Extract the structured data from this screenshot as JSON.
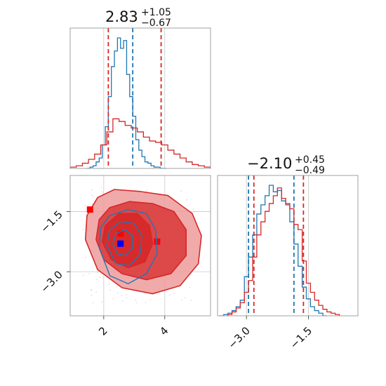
{
  "colors": {
    "blue": "#1f77b4",
    "red": "#d62728",
    "red_fill_light": "#ee9b9b",
    "red_fill_dark": "#d62728",
    "grid": "#c8c8c8",
    "frame": "#8a8a8a"
  },
  "chart_data": [
    {
      "type": "histogram",
      "panel": "top-left",
      "parameter_index": 0,
      "title": {
        "value": "2.83",
        "plus": "+1.05",
        "minus": "−0.67"
      },
      "xlim": [
        0.9,
        5.5
      ],
      "grid": true,
      "series": [
        {
          "color": "blue",
          "quantile_lines": [
            2.95
          ],
          "bins_x": [
            1.5,
            1.6,
            1.7,
            1.8,
            1.9,
            2.0,
            2.1,
            2.2,
            2.3,
            2.4,
            2.5,
            2.6,
            2.7,
            2.8,
            2.9,
            3.0,
            3.1,
            3.2,
            3.3,
            3.4,
            3.5,
            3.6,
            3.7,
            3.8,
            3.9,
            4.0
          ],
          "counts": [
            0.0,
            0.01,
            0.02,
            0.05,
            0.08,
            0.18,
            0.32,
            0.55,
            0.78,
            0.9,
            1.0,
            0.92,
            0.98,
            0.72,
            0.55,
            0.4,
            0.22,
            0.14,
            0.09,
            0.05,
            0.04,
            0.02,
            0.01,
            0.01,
            0.0,
            0.0
          ]
        },
        {
          "color": "red",
          "quantile_lines": [
            2.15,
            3.88
          ],
          "bins_x": [
            1.0,
            1.2,
            1.4,
            1.6,
            1.8,
            2.0,
            2.2,
            2.4,
            2.6,
            2.8,
            3.0,
            3.2,
            3.4,
            3.6,
            3.8,
            4.0,
            4.2,
            4.4,
            4.6,
            4.8,
            5.0,
            5.2,
            5.4
          ],
          "counts": [
            0.01,
            0.02,
            0.04,
            0.07,
            0.11,
            0.18,
            0.28,
            0.38,
            0.36,
            0.33,
            0.31,
            0.28,
            0.24,
            0.21,
            0.2,
            0.18,
            0.14,
            0.11,
            0.08,
            0.05,
            0.03,
            0.02,
            0.01
          ]
        }
      ]
    },
    {
      "type": "contour",
      "panel": "bottom-left",
      "xlim": [
        0.9,
        5.5
      ],
      "ylim": [
        -4.1,
        -0.6
      ],
      "grid": true,
      "xticks": [
        2,
        4
      ],
      "xtick_labels": [
        "2",
        "4"
      ],
      "yticks": [
        -1.5,
        -3.0
      ],
      "ytick_labels": [
        "−1.5",
        "−3.0"
      ],
      "series": [
        {
          "color": "red",
          "filled": true,
          "levels": [
            [
              [
                1.4,
                -2.2
              ],
              [
                1.45,
                -1.6
              ],
              [
                1.8,
                -1.15
              ],
              [
                2.35,
                -0.95
              ],
              [
                3.2,
                -1.0
              ],
              [
                4.1,
                -1.1
              ],
              [
                4.9,
                -1.55
              ],
              [
                5.2,
                -2.1
              ],
              [
                5.1,
                -2.8
              ],
              [
                4.5,
                -3.35
              ],
              [
                3.6,
                -3.55
              ],
              [
                2.6,
                -3.4
              ],
              [
                1.8,
                -2.95
              ]
            ],
            [
              [
                1.75,
                -2.2
              ],
              [
                1.85,
                -1.7
              ],
              [
                2.2,
                -1.4
              ],
              [
                2.85,
                -1.25
              ],
              [
                3.6,
                -1.3
              ],
              [
                4.3,
                -1.5
              ],
              [
                4.7,
                -1.95
              ],
              [
                4.7,
                -2.6
              ],
              [
                4.2,
                -3.05
              ],
              [
                3.4,
                -3.2
              ],
              [
                2.6,
                -3.05
              ],
              [
                2.0,
                -2.7
              ]
            ],
            [
              [
                1.95,
                -2.25
              ],
              [
                2.05,
                -1.85
              ],
              [
                2.5,
                -1.55
              ],
              [
                3.1,
                -1.55
              ],
              [
                3.5,
                -1.85
              ],
              [
                3.6,
                -2.3
              ],
              [
                3.35,
                -2.75
              ],
              [
                2.8,
                -2.9
              ],
              [
                2.25,
                -2.7
              ]
            ]
          ],
          "points": [
            [
              1.55,
              -1.45
            ],
            [
              2.55,
              -2.05
            ],
            [
              3.75,
              -2.25
            ]
          ]
        },
        {
          "color": "blue",
          "filled": false,
          "levels": [
            [
              [
                1.85,
                -2.4
              ],
              [
                1.9,
                -1.9
              ],
              [
                2.2,
                -1.6
              ],
              [
                2.8,
                -1.45
              ],
              [
                3.4,
                -1.55
              ],
              [
                3.7,
                -1.95
              ],
              [
                3.75,
                -2.55
              ],
              [
                3.4,
                -3.05
              ],
              [
                2.8,
                -3.3
              ],
              [
                2.2,
                -3.1
              ]
            ],
            [
              [
                2.1,
                -2.35
              ],
              [
                2.2,
                -1.95
              ],
              [
                2.55,
                -1.75
              ],
              [
                3.0,
                -1.8
              ],
              [
                3.25,
                -2.1
              ],
              [
                3.2,
                -2.55
              ],
              [
                2.85,
                -2.85
              ],
              [
                2.4,
                -2.8
              ]
            ],
            [
              [
                2.3,
                -2.3
              ],
              [
                2.4,
                -2.05
              ],
              [
                2.7,
                -1.95
              ],
              [
                2.95,
                -2.1
              ],
              [
                2.95,
                -2.4
              ],
              [
                2.7,
                -2.6
              ],
              [
                2.45,
                -2.55
              ]
            ]
          ],
          "points": [
            [
              2.55,
              -2.3
            ]
          ]
        }
      ]
    },
    {
      "type": "histogram",
      "panel": "bottom-right",
      "parameter_index": 1,
      "title": {
        "value": "−2.10",
        "plus": "+0.45",
        "minus": "−0.49"
      },
      "xlim": [
        -3.7,
        -0.3
      ],
      "grid": true,
      "xticks": [
        -3.0,
        -1.5
      ],
      "xtick_labels": [
        "−3.0",
        "−1.5"
      ],
      "series": [
        {
          "color": "blue",
          "quantile_lines": [
            -2.95,
            -1.85
          ],
          "bins_x": [
            -3.6,
            -3.5,
            -3.4,
            -3.3,
            -3.2,
            -3.1,
            -3.0,
            -2.9,
            -2.8,
            -2.7,
            -2.6,
            -2.5,
            -2.4,
            -2.3,
            -2.2,
            -2.1,
            -2.0,
            -1.9,
            -1.8,
            -1.7,
            -1.6,
            -1.5,
            -1.4,
            -1.3,
            -1.2,
            -1.1
          ],
          "counts": [
            0.0,
            0.01,
            0.02,
            0.04,
            0.07,
            0.12,
            0.3,
            0.45,
            0.62,
            0.78,
            0.85,
            0.92,
            1.0,
            0.95,
            0.96,
            0.88,
            0.86,
            0.72,
            0.55,
            0.38,
            0.22,
            0.13,
            0.07,
            0.04,
            0.02,
            0.0
          ]
        },
        {
          "color": "red",
          "quantile_lines": [
            -2.82,
            -1.62
          ],
          "bins_x": [
            -3.4,
            -3.3,
            -3.2,
            -3.1,
            -3.0,
            -2.9,
            -2.8,
            -2.7,
            -2.6,
            -2.5,
            -2.4,
            -2.3,
            -2.2,
            -2.1,
            -2.0,
            -1.9,
            -1.8,
            -1.7,
            -1.6,
            -1.5,
            -1.4,
            -1.3,
            -1.2,
            -1.1,
            -1.0,
            -0.9,
            -0.8
          ],
          "counts": [
            0.01,
            0.03,
            0.06,
            0.1,
            0.18,
            0.27,
            0.45,
            0.62,
            0.72,
            0.8,
            0.86,
            0.92,
            0.98,
            0.9,
            0.85,
            0.82,
            0.7,
            0.66,
            0.42,
            0.25,
            0.18,
            0.12,
            0.08,
            0.05,
            0.03,
            0.02,
            0.01
          ]
        }
      ]
    }
  ]
}
